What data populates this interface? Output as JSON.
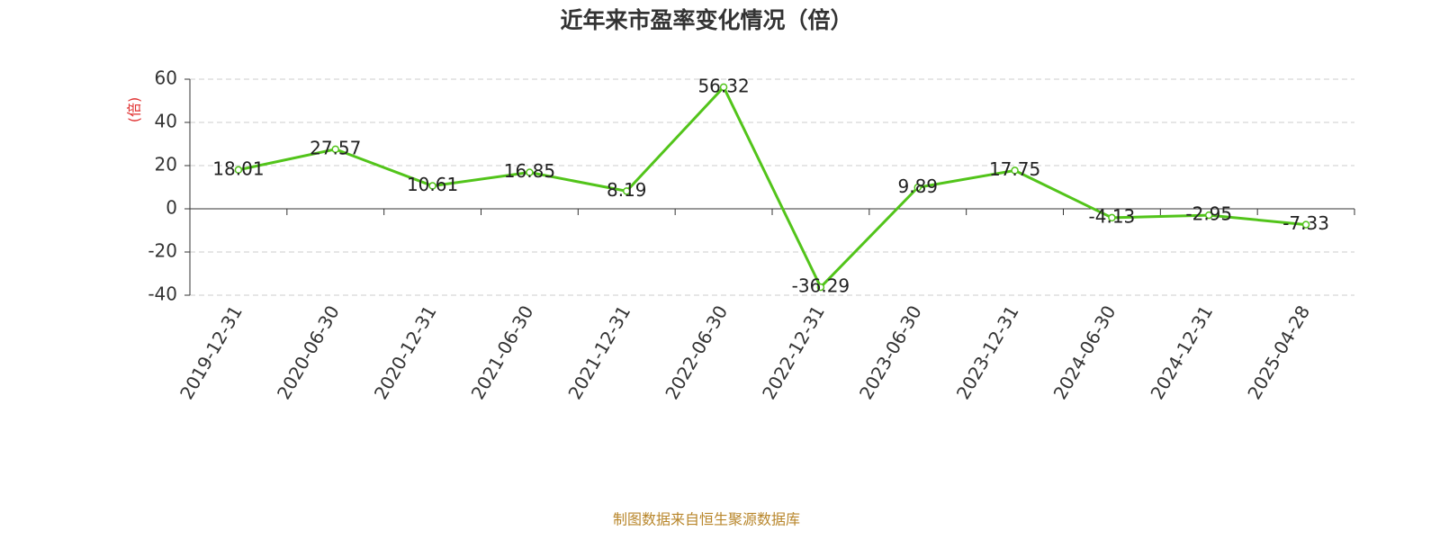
{
  "chart_data": {
    "type": "line",
    "title": "近年来市盈率变化情况（倍）",
    "ylabel": "(倍)",
    "footer": "制图数据来自恒生聚源数据库",
    "categories": [
      "2019-12-31",
      "2020-06-30",
      "2020-12-31",
      "2021-06-30",
      "2021-12-31",
      "2022-06-30",
      "2022-12-31",
      "2023-06-30",
      "2023-12-31",
      "2024-06-30",
      "2024-12-31",
      "2025-04-28"
    ],
    "values": [
      18.01,
      27.57,
      10.61,
      16.85,
      8.19,
      56.32,
      -36.29,
      9.89,
      17.75,
      -4.13,
      -2.95,
      -7.33
    ],
    "color": "#52c41a",
    "ylim": [
      -40,
      60
    ],
    "yticks": [
      -40,
      -20,
      0,
      20,
      40,
      60
    ],
    "grid": true
  }
}
